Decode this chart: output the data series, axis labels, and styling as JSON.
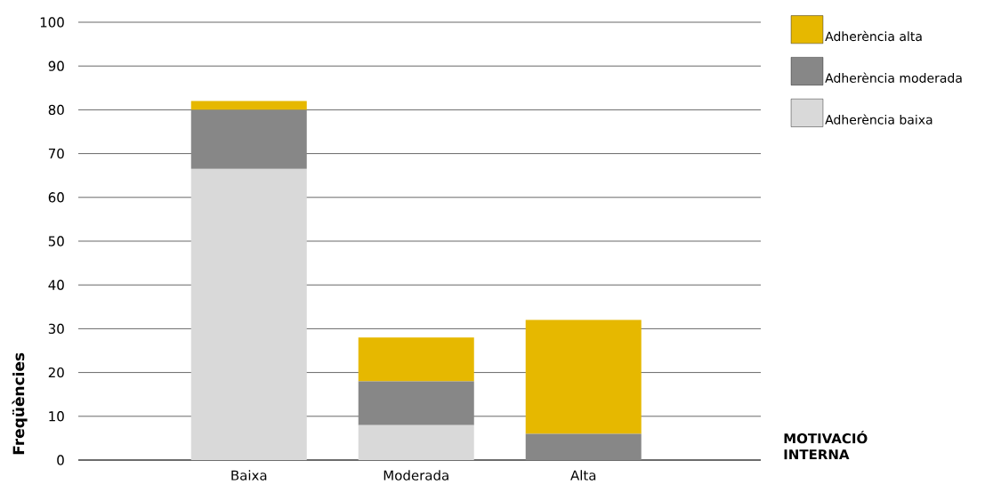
{
  "chart_data": {
    "type": "bar",
    "stacked": true,
    "xlabel": "MOTIVACIÓ INTERNA",
    "ylabel": "Freqüències",
    "categories": [
      "Baixa",
      "Moderada",
      "Alta"
    ],
    "series": [
      {
        "name": "Adherència baixa",
        "color": "#d9d9d9",
        "values": [
          66.5,
          8,
          0
        ]
      },
      {
        "name": "Adherència moderada",
        "color": "#878787",
        "values": [
          13.5,
          10,
          6
        ]
      },
      {
        "name": "Adherència alta",
        "color": "#e6b800",
        "values": [
          2,
          10,
          26
        ]
      }
    ],
    "ylim": [
      0,
      100
    ],
    "yticks": [
      0,
      10,
      20,
      30,
      40,
      50,
      60,
      70,
      80,
      90,
      100
    ],
    "grid": "y",
    "legend": "top right"
  }
}
